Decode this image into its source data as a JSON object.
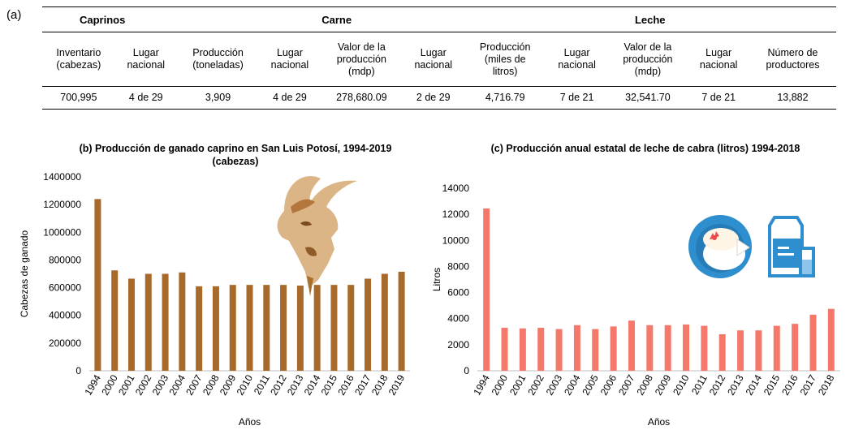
{
  "panel_a_label": "(a)",
  "table": {
    "groups": [
      "Caprinos",
      "Carne",
      "Leche"
    ],
    "headers": [
      [
        "Inventario",
        "(cabezas)"
      ],
      [
        "Lugar",
        "nacional"
      ],
      [
        "Producción",
        "(toneladas)"
      ],
      [
        "Lugar",
        "nacional"
      ],
      [
        "Valor de la",
        "producción",
        "(mdp)"
      ],
      [
        "Lugar",
        "nacional"
      ],
      [
        "Producción",
        "(miles de",
        "litros)"
      ],
      [
        "Lugar",
        "nacional"
      ],
      [
        "Valor de la",
        "producción",
        "(mdp)"
      ],
      [
        "Lugar",
        "nacional"
      ],
      [
        "Número de",
        "productores"
      ]
    ],
    "values": [
      "700,995",
      "4 de 29",
      "3,909",
      "4 de 29",
      "278,680.09",
      "2 de 29",
      "4,716.79",
      "7 de  21",
      "32,541.70",
      "7 de 21",
      "13,882"
    ]
  },
  "chart_data": [
    {
      "type": "bar",
      "title": "(b) Producción  de ganado caprino en San Luis Potosí, 1994-2019",
      "subtitle": "(cabezas)",
      "xlabel": "Años",
      "ylabel": "Cabezas de ganado",
      "ylim": [
        0,
        1400000
      ],
      "yticks": [
        "0",
        "200000",
        "400000",
        "600000",
        "800000",
        "1000000",
        "1200000",
        "1400000"
      ],
      "categories": [
        "1994",
        "2000",
        "2001",
        "2002",
        "2003",
        "2004",
        "2007",
        "2008",
        "2009",
        "2010",
        "2011",
        "2012",
        "2013",
        "2014",
        "2015",
        "2016",
        "2017",
        "2018",
        "2019"
      ],
      "values": [
        1240000,
        725000,
        665000,
        700000,
        700000,
        710000,
        610000,
        610000,
        620000,
        620000,
        620000,
        620000,
        615000,
        620000,
        620000,
        620000,
        665000,
        700000,
        715000
      ],
      "color": "#a86a2a",
      "grid": false
    },
    {
      "type": "bar",
      "title": "(c) Producción  anual estatal de leche de cabra (litros) 1994-2018",
      "xlabel": "Años",
      "ylabel": "Litros",
      "ylim": [
        0,
        14000
      ],
      "yticks": [
        "0",
        "2000",
        "4000",
        "6000",
        "8000",
        "10000",
        "12000",
        "14000"
      ],
      "categories": [
        "1994",
        "2000",
        "2001",
        "2002",
        "2003",
        "2004",
        "2005",
        "2006",
        "2007",
        "2008",
        "2009",
        "2010",
        "2011",
        "2012",
        "2013",
        "2014",
        "2015",
        "2016",
        "2017",
        "2018"
      ],
      "values": [
        12450,
        3300,
        3250,
        3300,
        3200,
        3500,
        3200,
        3400,
        3850,
        3500,
        3500,
        3550,
        3450,
        2800,
        3100,
        3100,
        3450,
        3600,
        4300,
        4750
      ],
      "color": "#f4796b",
      "grid": false
    }
  ],
  "colors": {
    "goat": "#c9955a",
    "cheese_bg": "#2f8fce",
    "milk_box": "#2f8fce"
  },
  "icons": [
    "goat-head-icon",
    "cheese-icon",
    "milk-carton-icon"
  ]
}
